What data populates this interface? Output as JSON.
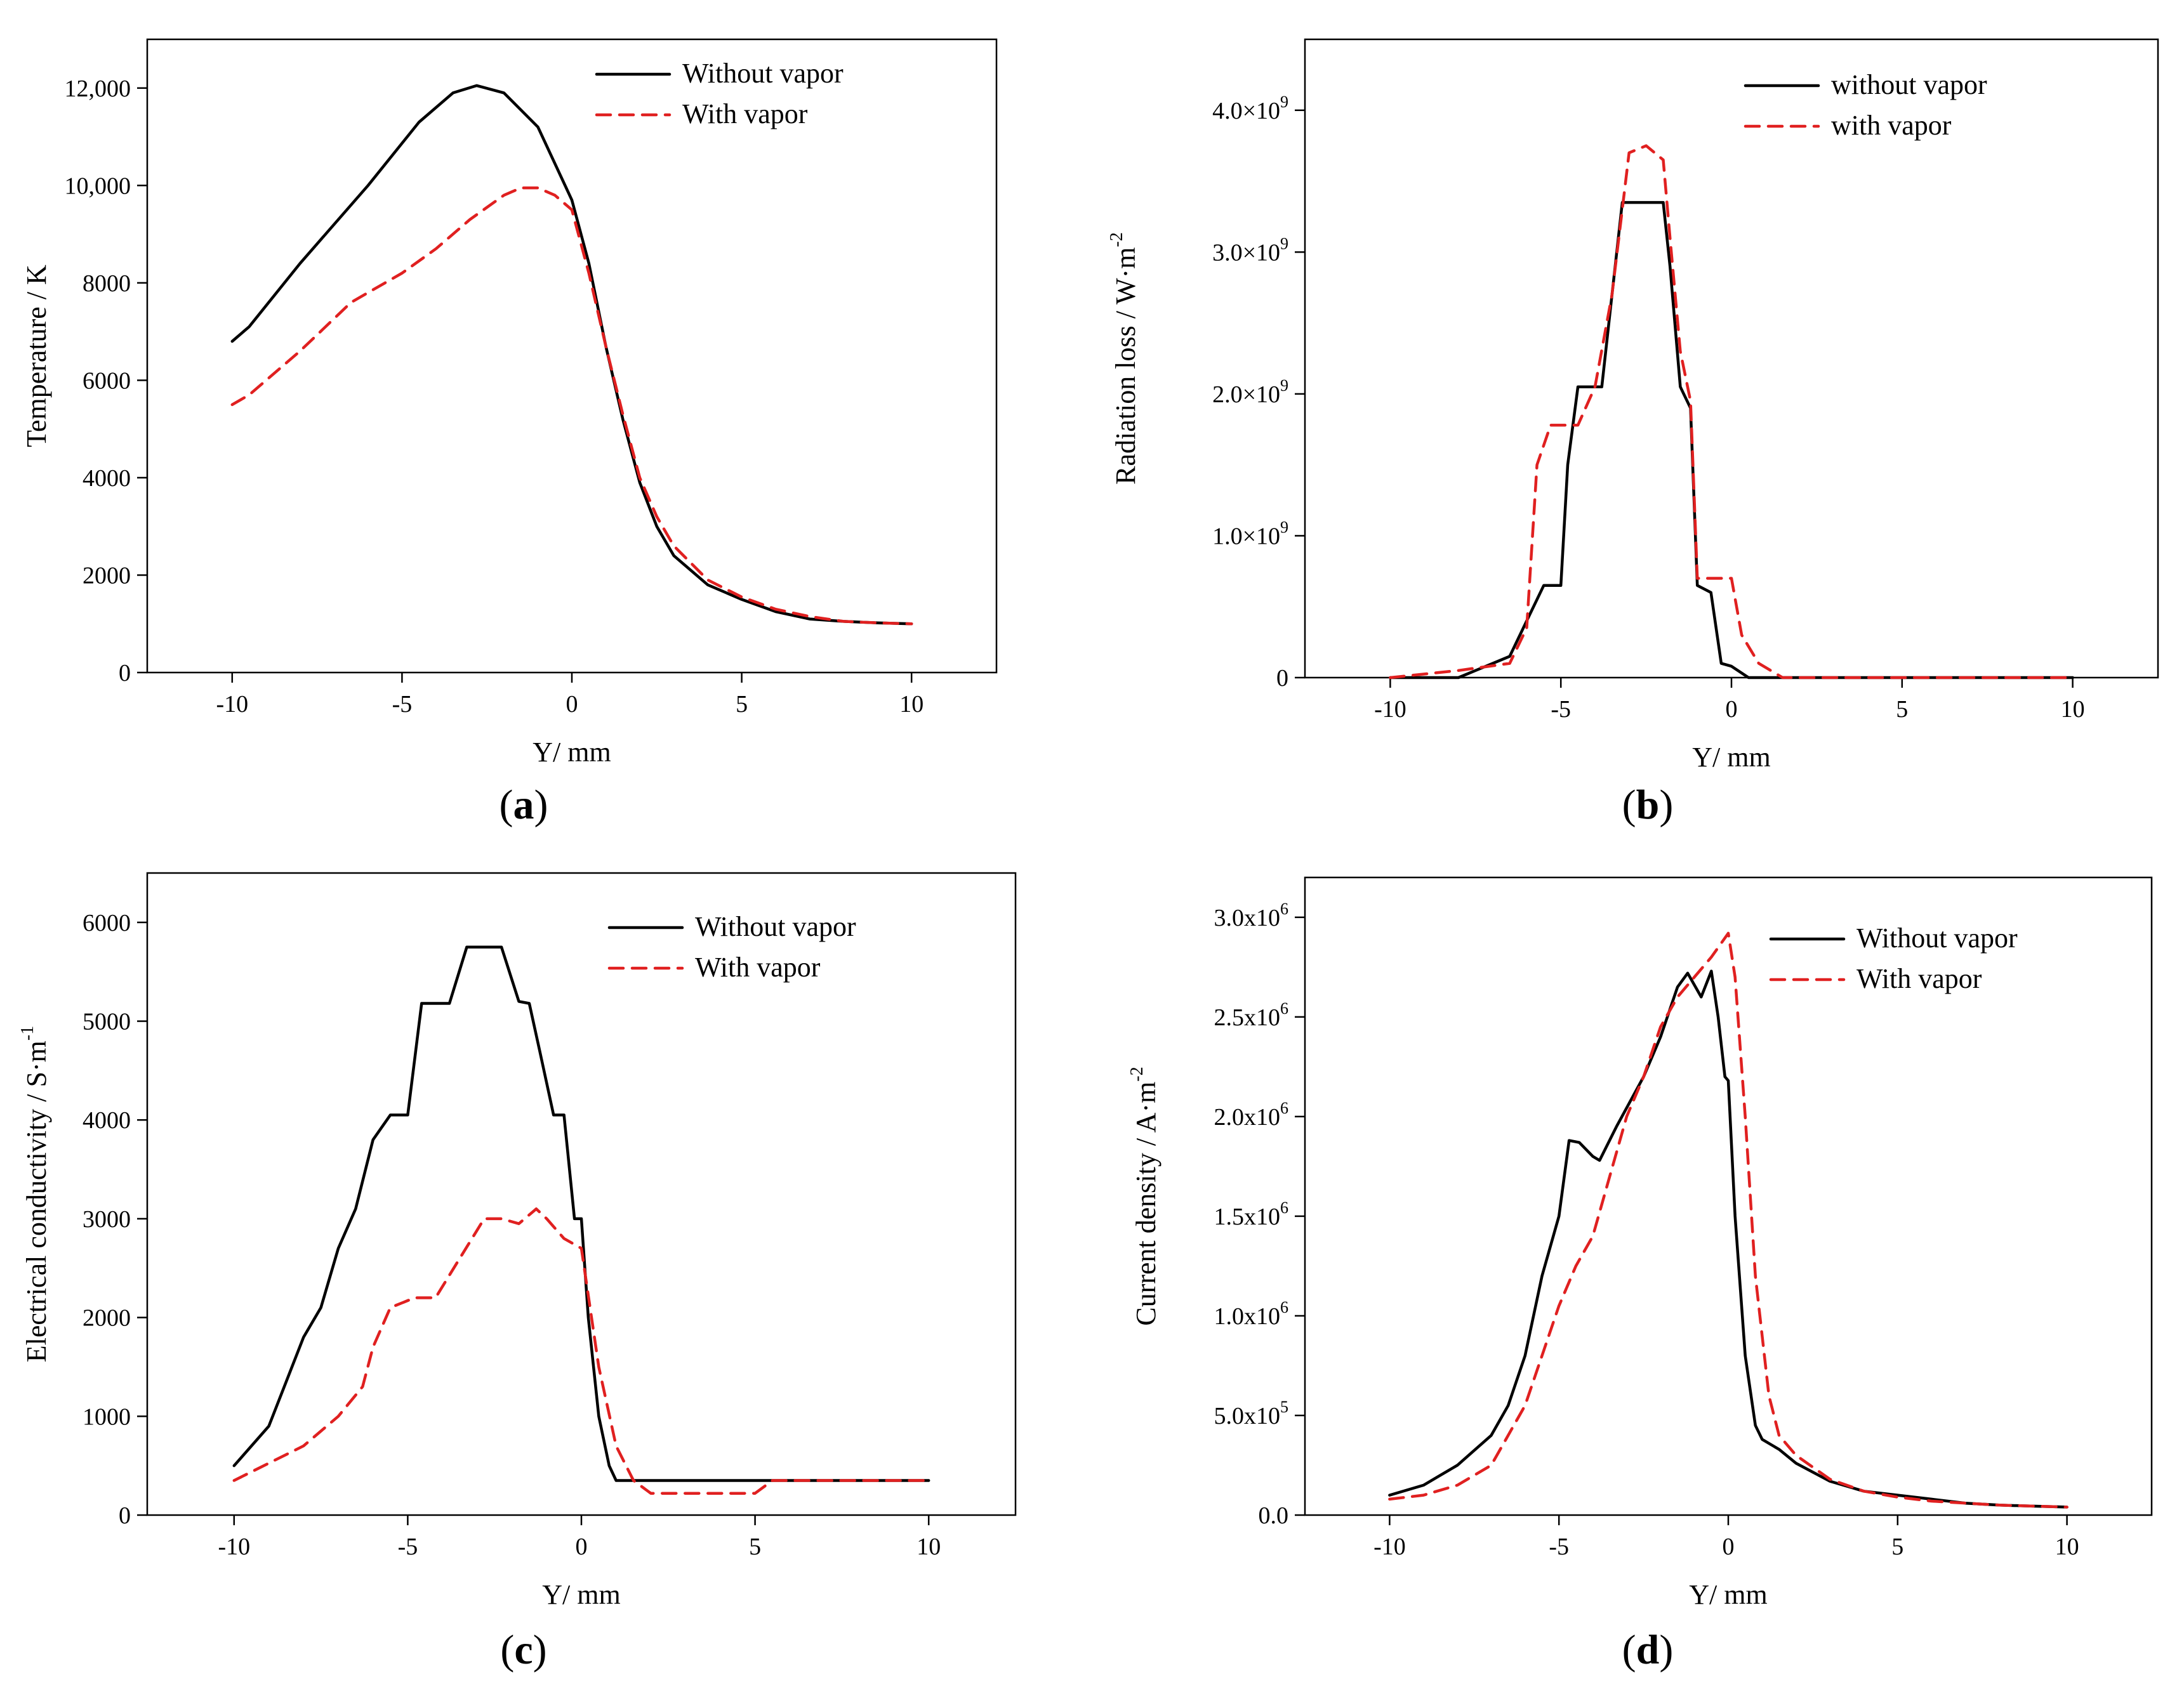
{
  "colors": {
    "without_vapor": "#000000",
    "with_vapor": "#e02020"
  },
  "chart_data": [
    {
      "id": "a",
      "type": "line",
      "caption_letter": "a",
      "xlabel": "Y/ mm",
      "ylabel": "Temperature / K",
      "xlim": [
        -12.5,
        12.5
      ],
      "ylim": [
        0,
        13000
      ],
      "xticks": [
        -10,
        -5,
        0,
        5,
        10
      ],
      "xtick_labels": [
        "-10",
        "-5",
        "0",
        "5",
        "10"
      ],
      "yticks": [
        0,
        2000,
        4000,
        6000,
        8000,
        10000,
        12000
      ],
      "ytick_labels": [
        "0",
        "2000",
        "4000",
        "6000",
        "8000",
        "10,000",
        "12,000"
      ],
      "legend": {
        "position": "top-right",
        "entries": [
          "Without vapor",
          "With vapor"
        ]
      },
      "series": [
        {
          "name": "Without vapor",
          "style": "solid",
          "points": [
            [
              -10,
              6800
            ],
            [
              -9.5,
              7100
            ],
            [
              -8,
              8400
            ],
            [
              -6,
              10000
            ],
            [
              -4.5,
              11300
            ],
            [
              -3.5,
              11900
            ],
            [
              -2.8,
              12050
            ],
            [
              -2,
              11900
            ],
            [
              -1,
              11200
            ],
            [
              0,
              9700
            ],
            [
              0.5,
              8400
            ],
            [
              1,
              6700
            ],
            [
              1.5,
              5200
            ],
            [
              2,
              3900
            ],
            [
              2.5,
              3000
            ],
            [
              3,
              2400
            ],
            [
              4,
              1800
            ],
            [
              5,
              1500
            ],
            [
              6,
              1250
            ],
            [
              7,
              1100
            ],
            [
              8,
              1050
            ],
            [
              9,
              1020
            ],
            [
              10,
              1000
            ]
          ]
        },
        {
          "name": "With vapor",
          "style": "dashed",
          "points": [
            [
              -10,
              5500
            ],
            [
              -9.5,
              5700
            ],
            [
              -8,
              6600
            ],
            [
              -6.5,
              7600
            ],
            [
              -5,
              8200
            ],
            [
              -4,
              8700
            ],
            [
              -3,
              9300
            ],
            [
              -2,
              9800
            ],
            [
              -1.5,
              9950
            ],
            [
              -1,
              9950
            ],
            [
              -0.5,
              9800
            ],
            [
              0,
              9500
            ],
            [
              0.5,
              8200
            ],
            [
              1,
              6700
            ],
            [
              1.5,
              5300
            ],
            [
              2,
              4000
            ],
            [
              2.5,
              3200
            ],
            [
              3,
              2600
            ],
            [
              4,
              1900
            ],
            [
              5,
              1550
            ],
            [
              6,
              1300
            ],
            [
              7,
              1150
            ],
            [
              8,
              1050
            ],
            [
              9,
              1020
            ],
            [
              10,
              1000
            ]
          ]
        }
      ]
    },
    {
      "id": "b",
      "type": "line",
      "caption_letter": "b",
      "xlabel": "Y/ mm",
      "ylabel": "Radiation loss / W·m-2",
      "ylabel_main": "Radiation loss / W·m",
      "ylabel_sup": "-2",
      "xlim": [
        -12.5,
        12.5
      ],
      "ylim": [
        0,
        4.5
      ],
      "xticks": [
        -10,
        -5,
        0,
        5,
        10
      ],
      "xtick_labels": [
        "-10",
        "-5",
        "0",
        "5",
        "10"
      ],
      "yticks": [
        0,
        1,
        2,
        3,
        4
      ],
      "ytick_labels": [
        {
          "main": "0",
          "sup": ""
        },
        {
          "main": "1.0×10",
          "sup": "9"
        },
        {
          "main": "2.0×10",
          "sup": "9"
        },
        {
          "main": "3.0×10",
          "sup": "9"
        },
        {
          "main": "4.0×10",
          "sup": "9"
        }
      ],
      "value_unit_note": "y values in units of 1e9 W·m-2",
      "legend": {
        "position": "top-right",
        "entries": [
          "without vapor",
          "with vapor"
        ]
      },
      "series": [
        {
          "name": "without vapor",
          "style": "solid",
          "points": [
            [
              -10,
              0
            ],
            [
              -8,
              0
            ],
            [
              -7.5,
              0.05
            ],
            [
              -6.5,
              0.15
            ],
            [
              -6,
              0.4
            ],
            [
              -5.5,
              0.65
            ],
            [
              -5,
              0.65
            ],
            [
              -4.8,
              1.5
            ],
            [
              -4.5,
              2.05
            ],
            [
              -3.8,
              2.05
            ],
            [
              -3.5,
              2.7
            ],
            [
              -3.2,
              3.35
            ],
            [
              -2,
              3.35
            ],
            [
              -1.8,
              2.9
            ],
            [
              -1.5,
              2.05
            ],
            [
              -1.2,
              1.9
            ],
            [
              -1,
              0.65
            ],
            [
              -0.6,
              0.6
            ],
            [
              -0.3,
              0.1
            ],
            [
              0,
              0.08
            ],
            [
              0.5,
              0
            ],
            [
              10,
              0
            ]
          ]
        },
        {
          "name": "with vapor",
          "style": "dashed",
          "points": [
            [
              -10,
              0
            ],
            [
              -8,
              0.05
            ],
            [
              -6.5,
              0.1
            ],
            [
              -6,
              0.35
            ],
            [
              -5.7,
              1.5
            ],
            [
              -5.3,
              1.78
            ],
            [
              -4.5,
              1.78
            ],
            [
              -4,
              2.05
            ],
            [
              -3.5,
              2.7
            ],
            [
              -3,
              3.7
            ],
            [
              -2.5,
              3.75
            ],
            [
              -2,
              3.65
            ],
            [
              -1.8,
              3.1
            ],
            [
              -1.5,
              2.3
            ],
            [
              -1.2,
              1.95
            ],
            [
              -1,
              0.7
            ],
            [
              0,
              0.7
            ],
            [
              0.3,
              0.3
            ],
            [
              0.8,
              0.1
            ],
            [
              1.5,
              0
            ],
            [
              10,
              0
            ]
          ]
        }
      ]
    },
    {
      "id": "c",
      "type": "line",
      "caption_letter": "c",
      "xlabel": "Y/ mm",
      "ylabel": "Electrical conductivity / S·m-1",
      "ylabel_main": "Electrical conductivity / S·m",
      "ylabel_sup": "-1",
      "xlim": [
        -12.5,
        12.5
      ],
      "ylim": [
        0,
        6500
      ],
      "xticks": [
        -10,
        -5,
        0,
        5,
        10
      ],
      "xtick_labels": [
        "-10",
        "-5",
        "0",
        "5",
        "10"
      ],
      "yticks": [
        0,
        1000,
        2000,
        3000,
        4000,
        5000,
        6000
      ],
      "ytick_labels": [
        "0",
        "1000",
        "2000",
        "3000",
        "4000",
        "5000",
        "6000"
      ],
      "legend": {
        "position": "top-right",
        "entries": [
          "Without vapor",
          "With vapor"
        ]
      },
      "series": [
        {
          "name": "Without vapor",
          "style": "solid",
          "points": [
            [
              -10,
              500
            ],
            [
              -9,
              900
            ],
            [
              -8.5,
              1350
            ],
            [
              -8,
              1800
            ],
            [
              -7.5,
              2100
            ],
            [
              -7,
              2700
            ],
            [
              -6.5,
              3100
            ],
            [
              -6,
              3800
            ],
            [
              -5.5,
              4050
            ],
            [
              -5,
              4050
            ],
            [
              -4.6,
              5180
            ],
            [
              -3.8,
              5180
            ],
            [
              -3.3,
              5750
            ],
            [
              -2.3,
              5750
            ],
            [
              -1.8,
              5200
            ],
            [
              -1.5,
              5180
            ],
            [
              -1.2,
              4700
            ],
            [
              -0.8,
              4050
            ],
            [
              -0.5,
              4050
            ],
            [
              -0.2,
              3000
            ],
            [
              0,
              3000
            ],
            [
              0.2,
              2000
            ],
            [
              0.5,
              1000
            ],
            [
              0.8,
              500
            ],
            [
              1,
              350
            ],
            [
              10,
              350
            ]
          ]
        },
        {
          "name": "With vapor",
          "style": "dashed",
          "points": [
            [
              -10,
              350
            ],
            [
              -8,
              700
            ],
            [
              -7,
              1000
            ],
            [
              -6.3,
              1300
            ],
            [
              -6,
              1700
            ],
            [
              -5.5,
              2100
            ],
            [
              -4.8,
              2200
            ],
            [
              -4.2,
              2200
            ],
            [
              -3.5,
              2600
            ],
            [
              -2.8,
              3000
            ],
            [
              -2.3,
              3000
            ],
            [
              -1.8,
              2950
            ],
            [
              -1.3,
              3100
            ],
            [
              -1,
              3000
            ],
            [
              -0.5,
              2800
            ],
            [
              0,
              2700
            ],
            [
              0.5,
              1500
            ],
            [
              1,
              700
            ],
            [
              1.5,
              350
            ],
            [
              2,
              220
            ],
            [
              5,
              220
            ],
            [
              5.5,
              350
            ],
            [
              10,
              350
            ]
          ]
        }
      ]
    },
    {
      "id": "d",
      "type": "line",
      "caption_letter": "d",
      "xlabel": "Y/ mm",
      "ylabel": "Current density / A·m-2",
      "ylabel_main": "Current density / A·m",
      "ylabel_sup": "-2",
      "xlim": [
        -12.5,
        12.5
      ],
      "ylim": [
        0,
        3.2
      ],
      "xticks": [
        -10,
        -5,
        0,
        5,
        10
      ],
      "xtick_labels": [
        "-10",
        "-5",
        "0",
        "5",
        "10"
      ],
      "yticks": [
        0,
        0.5,
        1,
        1.5,
        2,
        2.5,
        3
      ],
      "ytick_labels": [
        {
          "main": "0.0",
          "sup": ""
        },
        {
          "main": "5.0x10",
          "sup": "5"
        },
        {
          "main": "1.0x10",
          "sup": "6"
        },
        {
          "main": "1.5x10",
          "sup": "6"
        },
        {
          "main": "2.0x10",
          "sup": "6"
        },
        {
          "main": "2.5x10",
          "sup": "6"
        },
        {
          "main": "3.0x10",
          "sup": "6"
        }
      ],
      "value_unit_note": "y values in units of 1e6 A·m-2",
      "legend": {
        "position": "top-right",
        "entries": [
          "Without vapor",
          "With vapor"
        ]
      },
      "series": [
        {
          "name": "Without vapor",
          "style": "solid",
          "points": [
            [
              -10,
              0.1
            ],
            [
              -9,
              0.15
            ],
            [
              -8.5,
              0.2
            ],
            [
              -8,
              0.25
            ],
            [
              -7,
              0.4
            ],
            [
              -6.5,
              0.55
            ],
            [
              -6,
              0.8
            ],
            [
              -5.5,
              1.2
            ],
            [
              -5,
              1.5
            ],
            [
              -4.7,
              1.88
            ],
            [
              -4.4,
              1.87
            ],
            [
              -4,
              1.8
            ],
            [
              -3.8,
              1.78
            ],
            [
              -3.3,
              1.95
            ],
            [
              -2.5,
              2.2
            ],
            [
              -2,
              2.4
            ],
            [
              -1.5,
              2.65
            ],
            [
              -1.2,
              2.72
            ],
            [
              -0.8,
              2.6
            ],
            [
              -0.5,
              2.73
            ],
            [
              -0.3,
              2.5
            ],
            [
              -0.1,
              2.2
            ],
            [
              0,
              2.18
            ],
            [
              0.2,
              1.5
            ],
            [
              0.5,
              0.8
            ],
            [
              0.8,
              0.45
            ],
            [
              1,
              0.38
            ],
            [
              1.5,
              0.33
            ],
            [
              2,
              0.26
            ],
            [
              3,
              0.17
            ],
            [
              4,
              0.12
            ],
            [
              5,
              0.1
            ],
            [
              6,
              0.08
            ],
            [
              7,
              0.06
            ],
            [
              8,
              0.05
            ],
            [
              9,
              0.045
            ],
            [
              10,
              0.04
            ]
          ]
        },
        {
          "name": "With vapor",
          "style": "dashed",
          "points": [
            [
              -10,
              0.08
            ],
            [
              -9,
              0.1
            ],
            [
              -8,
              0.15
            ],
            [
              -7,
              0.25
            ],
            [
              -6,
              0.55
            ],
            [
              -5.5,
              0.8
            ],
            [
              -5,
              1.05
            ],
            [
              -4.5,
              1.25
            ],
            [
              -4,
              1.4
            ],
            [
              -3.5,
              1.7
            ],
            [
              -3,
              2.0
            ],
            [
              -2.5,
              2.2
            ],
            [
              -2,
              2.45
            ],
            [
              -1.5,
              2.6
            ],
            [
              -1,
              2.7
            ],
            [
              -0.5,
              2.8
            ],
            [
              0,
              2.92
            ],
            [
              0.2,
              2.7
            ],
            [
              0.5,
              2.0
            ],
            [
              0.8,
              1.2
            ],
            [
              1.2,
              0.6
            ],
            [
              1.5,
              0.4
            ],
            [
              2,
              0.3
            ],
            [
              3,
              0.18
            ],
            [
              4,
              0.12
            ],
            [
              5,
              0.09
            ],
            [
              6,
              0.07
            ],
            [
              7,
              0.06
            ],
            [
              8,
              0.05
            ],
            [
              10,
              0.04
            ]
          ]
        }
      ]
    }
  ]
}
